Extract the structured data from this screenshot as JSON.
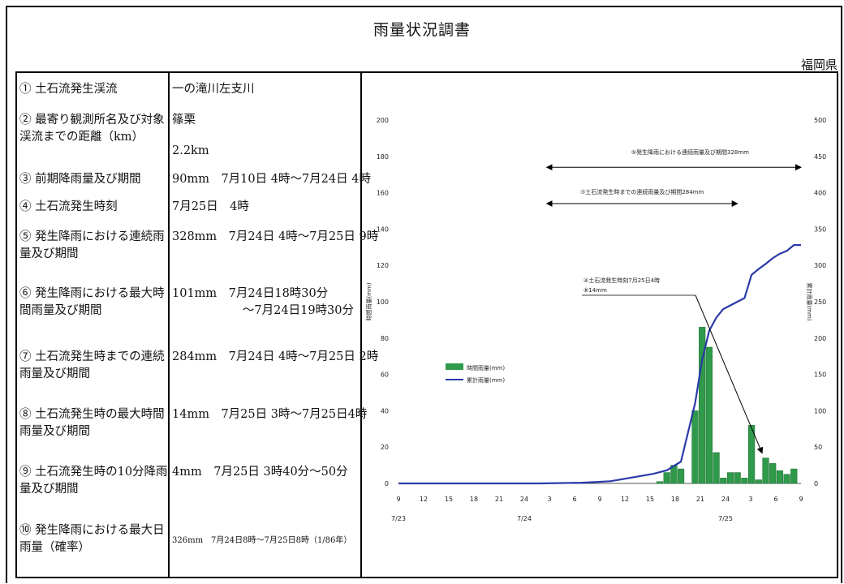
{
  "header": {
    "title": "雨量状況調書",
    "prefecture": "福岡県"
  },
  "rows": [
    {
      "label": "① 土石流発生渓流",
      "value": [
        "一の滝川左支川"
      ]
    },
    {
      "label": "② 最寄り観測所名及び対象渓流までの距離（km）",
      "value": [
        "篠栗",
        "2.2km"
      ]
    },
    {
      "label": "③ 前期降雨量及び期間",
      "value": [
        "90mm　7月10日 4時～7月24日 4時"
      ]
    },
    {
      "label": "④ 土石流発生時刻",
      "value": [
        "7月25日　4時"
      ]
    },
    {
      "label": "⑤ 発生降雨における連続雨量及び期間",
      "value": [
        "328mm　7月24日 4時～7月25日 9時"
      ]
    },
    {
      "label": "⑥ 発生降雨における最大時間雨量及び期間",
      "value": [
        "101mm　7月24日18時30分",
        "～7月24日19時30分"
      ]
    },
    {
      "label": "⑦ 土石流発生時までの連続雨量及び期間",
      "value": [
        "284mm　7月24日 4時～7月25日 2時"
      ]
    },
    {
      "label": "⑧ 土石流発生時の最大時間雨量及び期間",
      "value": [
        "14mm　7月25日 3時～7月25日4時"
      ]
    },
    {
      "label": "⑨ 土石流発生時の10分降雨量及び期間",
      "value": [
        "4mm　7月25日 3時40分～50分"
      ]
    },
    {
      "label": "⑩ 発生降雨における最大日雨量（確率）",
      "value": [
        "326mm　7月24日8時～7月25日8時（1/86年）"
      ]
    }
  ],
  "chart_data": {
    "type": "bar+line",
    "legend": [
      "時間雨量(mm)",
      "累計雨量(mm)"
    ],
    "legend_position": "middle-left",
    "y_left": {
      "ylim": [
        0,
        200
      ],
      "ticks": [
        0,
        20,
        40,
        60,
        80,
        100,
        120,
        140,
        160,
        180,
        200
      ],
      "label": "時間雨量(mm)"
    },
    "y_right": {
      "ylim": [
        0,
        500
      ],
      "ticks": [
        0,
        50,
        100,
        150,
        200,
        250,
        300,
        350,
        400,
        450,
        500
      ],
      "label": "累計雨量(mm)"
    },
    "x_tick_labels": [
      "9",
      "12",
      "15",
      "18",
      "21",
      "24",
      "3",
      "6",
      "9",
      "12",
      "15",
      "18",
      "21",
      "24",
      "3",
      "6",
      "9"
    ],
    "x_date_labels": [
      {
        "text": "7/23",
        "index": 0
      },
      {
        "text": "7/24",
        "index": 5
      },
      {
        "text": "7/25",
        "index": 13
      }
    ],
    "hourly_bars": [
      {
        "h": 37,
        "v": 1
      },
      {
        "h": 38,
        "v": 6
      },
      {
        "h": 39,
        "v": 10
      },
      {
        "h": 40,
        "v": 8
      },
      {
        "h": 42,
        "v": 40
      },
      {
        "h": 43,
        "v": 86
      },
      {
        "h": 44,
        "v": 75
      },
      {
        "h": 45,
        "v": 17
      },
      {
        "h": 46,
        "v": 3
      },
      {
        "h": 47,
        "v": 6
      },
      {
        "h": 48,
        "v": 6
      },
      {
        "h": 49,
        "v": 3
      },
      {
        "h": 50,
        "v": 32
      },
      {
        "h": 51,
        "v": 2
      },
      {
        "h": 52,
        "v": 14
      },
      {
        "h": 53,
        "v": 11
      },
      {
        "h": 54,
        "v": 7
      },
      {
        "h": 55,
        "v": 5
      },
      {
        "h": 56,
        "v": 8
      }
    ],
    "cumulative": [
      {
        "h": 0,
        "v": 0
      },
      {
        "h": 20,
        "v": 0
      },
      {
        "h": 26,
        "v": 1
      },
      {
        "h": 30,
        "v": 3
      },
      {
        "h": 33,
        "v": 8
      },
      {
        "h": 36,
        "v": 13
      },
      {
        "h": 38,
        "v": 18
      },
      {
        "h": 40,
        "v": 30
      },
      {
        "h": 41,
        "v": 70
      },
      {
        "h": 42,
        "v": 110
      },
      {
        "h": 43,
        "v": 170
      },
      {
        "h": 44,
        "v": 210
      },
      {
        "h": 45,
        "v": 228
      },
      {
        "h": 46,
        "v": 240
      },
      {
        "h": 47,
        "v": 245
      },
      {
        "h": 48,
        "v": 250
      },
      {
        "h": 49,
        "v": 255
      },
      {
        "h": 50,
        "v": 287
      },
      {
        "h": 51,
        "v": 295
      },
      {
        "h": 52,
        "v": 302
      },
      {
        "h": 53,
        "v": 310
      },
      {
        "h": 54,
        "v": 316
      },
      {
        "h": 55,
        "v": 320
      },
      {
        "h": 56,
        "v": 328
      },
      {
        "h": 57,
        "v": 328
      }
    ],
    "annotations": [
      {
        "text": "⑤発生降雨における連続雨量及び期間328mm",
        "h1": 21,
        "h2": 57,
        "y_left": 174
      },
      {
        "text": "⑦土石流発生時までの連続雨量及び期間284mm",
        "h1": 21,
        "h2": 48,
        "y_left": 154
      },
      {
        "text": "④土石流発生時刻7月25日4時",
        "text2": "⑧14mm",
        "target_h": 51.5,
        "target_y": 14
      }
    ]
  }
}
